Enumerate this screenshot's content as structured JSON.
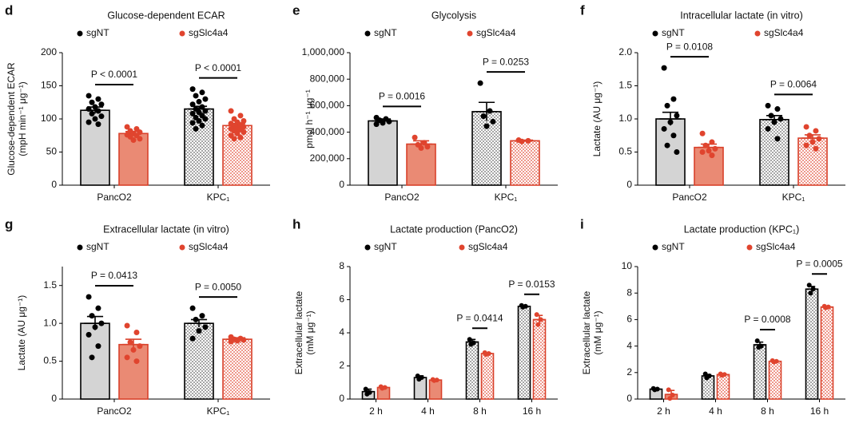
{
  "chart_data": [
    {
      "type": "bar",
      "panel": "d",
      "title": "Glucose-dependent ECAR",
      "ylabel": [
        "Glucose-dependent ECAR",
        "(mpH min⁻¹ μg⁻¹)"
      ],
      "categories": [
        "PancO2",
        "KPC₁"
      ],
      "hatched": [
        false,
        true
      ],
      "annotations": [
        "P < 0.0001",
        "P < 0.0001"
      ],
      "ylim": [
        0,
        200
      ],
      "yticks": [
        0,
        50,
        100,
        150,
        200
      ],
      "series": [
        {
          "name": "sgNT",
          "color": "#000000",
          "fill": "#d4d4d4",
          "dot_color": "#000000",
          "values": [
            113,
            115
          ],
          "errors": [
            5,
            4
          ],
          "points": [
            [
              135,
              130,
              125,
              122,
              118,
              115,
              112,
              108,
              104,
              100,
              95,
              92
            ],
            [
              145,
              140,
              135,
              130,
              126,
              122,
              118,
              115,
              112,
              110,
              108,
              105,
              102,
              100,
              97,
              94,
              90,
              85
            ]
          ]
        },
        {
          "name": "sgSlc4a4",
          "color": "#d9412b",
          "fill": "#ea8a74",
          "dot_color": "#e0442e",
          "values": [
            78,
            90
          ],
          "errors": [
            3,
            3
          ],
          "points": [
            [
              88,
              85,
              82,
              80,
              78,
              76,
              75,
              73,
              70,
              68
            ],
            [
              112,
              105,
              100,
              97,
              95,
              93,
              91,
              89,
              88,
              86,
              85,
              84,
              82,
              80,
              78,
              75,
              72,
              70
            ]
          ]
        }
      ]
    },
    {
      "type": "bar",
      "panel": "e",
      "title": "Glycolysis",
      "ylabel": [
        "pmol h⁻¹ μg⁻¹"
      ],
      "categories": [
        "PancO2",
        "KPC₁"
      ],
      "hatched": [
        false,
        true
      ],
      "annotations": [
        "P = 0.0016",
        "P = 0.0253"
      ],
      "ylim": [
        0,
        1000000
      ],
      "yticks": [
        0,
        {
          "value": 200000,
          "label": "200,000"
        },
        {
          "value": 400000,
          "label": "400,000"
        },
        {
          "value": 600000,
          "label": "600,000"
        },
        {
          "value": 800000,
          "label": "800,000"
        },
        {
          "value": 1000000,
          "label": "1,000,000"
        }
      ],
      "series": [
        {
          "name": "sgNT",
          "color": "#000000",
          "fill": "#d4d4d4",
          "dot_color": "#000000",
          "values": [
            485000,
            555000
          ],
          "errors": [
            15000,
            70000
          ],
          "points": [
            [
              510000,
              500000,
              490000,
              480000,
              470000,
              460000
            ],
            [
              770000,
              560000,
              520000,
              480000,
              445000
            ]
          ]
        },
        {
          "name": "sgSlc4a4",
          "color": "#d9412b",
          "fill": "#ea8a74",
          "dot_color": "#e0442e",
          "values": [
            310000,
            335000
          ],
          "errors": [
            25000,
            5000
          ],
          "points": [
            [
              360000,
              320000,
              305000,
              290000,
              280000
            ],
            [
              340000,
              335000,
              330000
            ]
          ]
        }
      ]
    },
    {
      "type": "bar",
      "panel": "f",
      "title": "Intracellular lactate (in vitro)",
      "ylabel": [
        "Lactate (AU μg⁻¹)"
      ],
      "categories": [
        "PancO2",
        "KPC₁"
      ],
      "hatched": [
        false,
        true
      ],
      "annotations": [
        "P = 0.0108",
        "P = 0.0064"
      ],
      "ylim": [
        0,
        2
      ],
      "yticks": [
        0,
        0.5,
        {
          "value": 1,
          "label": "1.0"
        },
        1.5,
        {
          "value": 2,
          "label": "2.0"
        }
      ],
      "series": [
        {
          "name": "sgNT",
          "color": "#000000",
          "fill": "#d4d4d4",
          "dot_color": "#000000",
          "values": [
            1.0,
            0.99
          ],
          "errors": [
            0.1,
            0.06
          ],
          "points": [
            [
              1.77,
              1.3,
              1.2,
              1.05,
              0.95,
              0.85,
              0.75,
              0.6,
              0.5
            ],
            [
              1.2,
              1.15,
              1.05,
              1.0,
              0.95,
              0.85,
              0.7
            ]
          ]
        },
        {
          "name": "sgSlc4a4",
          "color": "#d9412b",
          "fill": "#ea8a74",
          "dot_color": "#e0442e",
          "values": [
            0.57,
            0.71
          ],
          "errors": [
            0.05,
            0.05
          ],
          "points": [
            [
              0.78,
              0.65,
              0.6,
              0.55,
              0.52,
              0.5,
              0.45
            ],
            [
              0.88,
              0.82,
              0.75,
              0.7,
              0.65,
              0.6,
              0.55
            ]
          ]
        }
      ]
    },
    {
      "type": "bar",
      "panel": "g",
      "title": "Extracellular lactate (in vitro)",
      "ylabel": [
        "Lactate (AU μg⁻¹)"
      ],
      "categories": [
        "PancO2",
        "KPC₁"
      ],
      "hatched": [
        false,
        true
      ],
      "annotations": [
        "P = 0.0413",
        "P = 0.0050"
      ],
      "ylim": [
        0,
        1.75
      ],
      "yticks": [
        0,
        0.5,
        {
          "value": 1,
          "label": "1.0"
        },
        1.5
      ],
      "series": [
        {
          "name": "sgNT",
          "color": "#000000",
          "fill": "#d4d4d4",
          "dot_color": "#000000",
          "values": [
            1.0,
            1.0
          ],
          "errors": [
            0.09,
            0.05
          ],
          "points": [
            [
              1.35,
              1.2,
              1.1,
              1.0,
              0.95,
              0.85,
              0.7,
              0.55
            ],
            [
              1.2,
              1.1,
              1.05,
              0.95,
              0.9,
              0.8
            ]
          ]
        },
        {
          "name": "sgSlc4a4",
          "color": "#d9412b",
          "fill": "#ea8a74",
          "dot_color": "#e0442e",
          "values": [
            0.72,
            0.79
          ],
          "errors": [
            0.07,
            0.02
          ],
          "points": [
            [
              0.97,
              0.88,
              0.75,
              0.7,
              0.65,
              0.55,
              0.5
            ],
            [
              0.82,
              0.8,
              0.79,
              0.78,
              0.77,
              0.76
            ]
          ]
        }
      ]
    },
    {
      "type": "bar",
      "panel": "h",
      "title": "Lactate production (PancO2)",
      "ylabel": [
        "Extracellular lactate",
        "(mM μg⁻¹)"
      ],
      "categories": [
        "2 h",
        "4 h",
        "8 h",
        "16 h"
      ],
      "hatched": [
        false,
        false,
        true,
        true
      ],
      "annotations": [
        null,
        null,
        "P = 0.0414",
        "P = 0.0153"
      ],
      "ylim": [
        0,
        8
      ],
      "yticks": [
        0,
        2,
        4,
        6,
        8
      ],
      "series": [
        {
          "name": "sgNT",
          "color": "#000000",
          "fill": "#d4d4d4",
          "dot_color": "#000000",
          "values": [
            0.45,
            1.3,
            3.45,
            5.6
          ],
          "errors": [
            0.15,
            0.1,
            0.15,
            0.05
          ],
          "points": [
            [
              0.6,
              0.4,
              0.3
            ],
            [
              1.4,
              1.3,
              1.2
            ],
            [
              3.6,
              3.4,
              3.3
            ],
            [
              5.65,
              5.6,
              5.55
            ]
          ]
        },
        {
          "name": "sgSlc4a4",
          "color": "#d9412b",
          "fill": "#ea8a74",
          "dot_color": "#e0442e",
          "values": [
            0.7,
            1.15,
            2.75,
            4.8
          ],
          "errors": [
            0.05,
            0.03,
            0.05,
            0.25
          ],
          "points": [
            [
              0.75,
              0.7,
              0.65
            ],
            [
              1.18,
              1.15,
              1.12
            ],
            [
              2.8,
              2.75,
              2.7
            ],
            [
              5.1,
              4.8,
              4.5
            ]
          ]
        }
      ]
    },
    {
      "type": "bar",
      "panel": "i",
      "title": "Lactate production (KPC₁)",
      "ylabel": [
        "Extracellular lactate",
        "(mM μg⁻¹)"
      ],
      "categories": [
        "2 h",
        "4 h",
        "8 h",
        "16 h"
      ],
      "hatched": [
        false,
        true,
        true,
        true
      ],
      "annotations": [
        null,
        null,
        "P = 0.0008",
        "P = 0.0005"
      ],
      "ylim": [
        0,
        10
      ],
      "yticks": [
        0,
        2,
        4,
        6,
        8,
        10
      ],
      "series": [
        {
          "name": "sgNT",
          "color": "#000000",
          "fill": "#d4d4d4",
          "dot_color": "#000000",
          "values": [
            0.75,
            1.75,
            4.1,
            8.3
          ],
          "errors": [
            0.05,
            0.1,
            0.2,
            0.2
          ],
          "points": [
            [
              0.8,
              0.75,
              0.7
            ],
            [
              1.9,
              1.75,
              1.6
            ],
            [
              4.4,
              4.0,
              3.9
            ],
            [
              8.6,
              8.3,
              8.0
            ]
          ]
        },
        {
          "name": "sgSlc4a4",
          "color": "#d9412b",
          "fill": "#ea8a74",
          "dot_color": "#e0442e",
          "values": [
            0.35,
            1.85,
            2.85,
            6.95
          ],
          "errors": [
            0.3,
            0.05,
            0.05,
            0.05
          ],
          "points": [
            [
              0.7,
              0.3,
              0.05
            ],
            [
              1.9,
              1.85,
              1.8
            ],
            [
              2.9,
              2.85,
              2.8
            ],
            [
              7.0,
              6.95,
              6.9
            ]
          ]
        }
      ]
    }
  ]
}
